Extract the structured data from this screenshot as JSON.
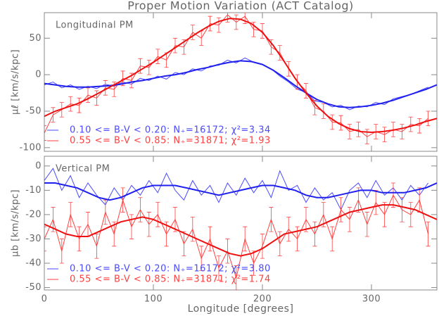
{
  "chart_data": [
    {
      "type": "line",
      "title": "Proper Motion Variation (ACT Catalog)",
      "annotation": "Longitudinal PM",
      "ylabel": "μℓ [km/s/kpc]",
      "xlim": [
        0,
        360
      ],
      "xticks": [
        0,
        100,
        200,
        300
      ],
      "show_xtick_labels": false,
      "ylim": [
        -105,
        85
      ],
      "yticks": [
        -100,
        -50,
        0,
        50
      ],
      "series": [
        {
          "name": "0.10 <= B-V < 0.20:  N₊=16172;  χ²=3.34",
          "color": "#4a4aff",
          "width": 1,
          "x": [
            0,
            8,
            16,
            24,
            32,
            40,
            48,
            56,
            64,
            72,
            80,
            88,
            96,
            104,
            112,
            120,
            128,
            136,
            144,
            152,
            160,
            168,
            176,
            184,
            192,
            200,
            208,
            216,
            224,
            232,
            240,
            248,
            256,
            264,
            272,
            280,
            288,
            296,
            304,
            312,
            320,
            328,
            336,
            344,
            352
          ],
          "values": [
            -14,
            -10,
            -18,
            -14,
            -20,
            -16,
            -19,
            -13,
            -16,
            -10,
            -13,
            -5,
            -8,
            -2,
            -6,
            3,
            0,
            8,
            5,
            12,
            13,
            20,
            16,
            23,
            17,
            14,
            8,
            -2,
            -10,
            -20,
            -24,
            -36,
            -38,
            -44,
            -42,
            -48,
            -43,
            -44,
            -38,
            -41,
            -33,
            -30,
            -27,
            -22,
            -17
          ]
        },
        {
          "name": "0.55 <= B-V < 0.85:  N₊=31871;  χ²=1.93",
          "color": "#ff4040",
          "width": 1,
          "error": 10,
          "x": [
            0,
            8,
            16,
            24,
            32,
            40,
            48,
            56,
            64,
            72,
            80,
            88,
            96,
            104,
            112,
            120,
            128,
            136,
            144,
            152,
            160,
            168,
            176,
            184,
            192,
            200,
            208,
            216,
            224,
            232,
            240,
            248,
            256,
            264,
            272,
            280,
            288,
            296,
            304,
            312,
            320,
            328,
            336,
            344,
            352
          ],
          "values": [
            -80,
            -55,
            -48,
            -40,
            -42,
            -28,
            -32,
            -18,
            -20,
            -5,
            -8,
            12,
            10,
            25,
            20,
            40,
            38,
            58,
            50,
            70,
            68,
            82,
            72,
            80,
            62,
            60,
            38,
            30,
            8,
            -10,
            -22,
            -45,
            -50,
            -65,
            -66,
            -78,
            -75,
            -85,
            -78,
            -82,
            -75,
            -78,
            -68,
            -70,
            -60
          ]
        },
        {
          "color": "#2020ee",
          "width": 2,
          "x": [
            0,
            10,
            20,
            30,
            40,
            50,
            60,
            70,
            80,
            90,
            100,
            110,
            120,
            130,
            140,
            150,
            160,
            170,
            180,
            190,
            200,
            210,
            220,
            230,
            240,
            250,
            260,
            270,
            280,
            290,
            300,
            310,
            320,
            330,
            340,
            350,
            360
          ],
          "values": [
            -12,
            -14,
            -16,
            -17,
            -17,
            -16,
            -15,
            -13,
            -10,
            -8,
            -5,
            -2,
            0,
            3,
            7,
            10,
            14,
            17,
            19,
            18,
            14,
            6,
            -4,
            -15,
            -25,
            -34,
            -40,
            -44,
            -45,
            -44,
            -42,
            -39,
            -35,
            -30,
            -25,
            -20,
            -14
          ]
        },
        {
          "color": "#ee1010",
          "width": 2,
          "x": [
            0,
            10,
            20,
            30,
            40,
            50,
            60,
            70,
            80,
            90,
            100,
            110,
            120,
            130,
            140,
            150,
            160,
            170,
            180,
            190,
            200,
            210,
            220,
            230,
            240,
            250,
            260,
            270,
            280,
            290,
            300,
            310,
            320,
            330,
            340,
            350,
            360
          ],
          "values": [
            -57,
            -50,
            -45,
            -40,
            -33,
            -25,
            -17,
            -9,
            -1,
            8,
            17,
            27,
            37,
            47,
            57,
            66,
            73,
            77,
            76,
            70,
            58,
            40,
            18,
            -5,
            -25,
            -43,
            -57,
            -67,
            -74,
            -78,
            -79,
            -78,
            -76,
            -73,
            -69,
            -64,
            -60
          ]
        }
      ]
    },
    {
      "type": "line",
      "annotation": "Vertical PM",
      "ylabel": "μb [km/s/kpc]",
      "xlabel": "Longitude [degrees]",
      "xlim": [
        0,
        360
      ],
      "xticks": [
        0,
        100,
        200,
        300
      ],
      "show_xtick_labels": true,
      "ylim": [
        -51,
        4
      ],
      "yticks": [
        0,
        -10,
        -20,
        -30,
        -40,
        -50
      ],
      "series": [
        {
          "name": "0.10 <= B-V < 0.20:  N₊=16172;  χ²=3.80",
          "color": "#4a4aff",
          "width": 1,
          "x": [
            0,
            8,
            16,
            24,
            32,
            40,
            48,
            56,
            64,
            72,
            80,
            88,
            96,
            104,
            112,
            120,
            128,
            136,
            144,
            152,
            160,
            168,
            176,
            184,
            192,
            200,
            208,
            216,
            224,
            232,
            240,
            248,
            256,
            264,
            272,
            280,
            288,
            296,
            304,
            312,
            320,
            328,
            336,
            344,
            352
          ],
          "values": [
            -6,
            -1,
            -10,
            -4,
            -13,
            -7,
            -12,
            -16,
            -9,
            -14,
            -8,
            -12,
            -6,
            -11,
            -3,
            -10,
            -14,
            -6,
            -12,
            -8,
            -15,
            -7,
            -12,
            -5,
            -11,
            -6,
            -13,
            -2,
            -10,
            -8,
            -15,
            -9,
            -14,
            -11,
            -18,
            -10,
            -7,
            -13,
            -6,
            -12,
            -9,
            -14,
            -8,
            -12,
            -7
          ]
        },
        {
          "name": "0.55 <= B-V < 0.85:  N₊=31871;  χ²=1.74",
          "color": "#ff4040",
          "width": 1,
          "error": 5,
          "x": [
            0,
            8,
            16,
            24,
            32,
            40,
            48,
            56,
            64,
            72,
            80,
            88,
            96,
            104,
            112,
            120,
            128,
            136,
            144,
            152,
            160,
            168,
            176,
            184,
            192,
            200,
            208,
            216,
            224,
            232,
            240,
            248,
            256,
            264,
            272,
            280,
            288,
            296,
            304,
            312,
            320,
            328,
            336,
            344,
            352
          ],
          "values": [
            -30,
            -22,
            -35,
            -20,
            -30,
            -24,
            -33,
            -19,
            -28,
            -14,
            -25,
            -18,
            -24,
            -20,
            -28,
            -22,
            -32,
            -26,
            -38,
            -30,
            -42,
            -35,
            -46,
            -30,
            -40,
            -33,
            -22,
            -32,
            -26,
            -30,
            -22,
            -28,
            -20,
            -30,
            -18,
            -22,
            -14,
            -24,
            -15,
            -20,
            -12,
            -18,
            -20,
            -14,
            -28
          ]
        },
        {
          "color": "#2020ee",
          "width": 2,
          "x": [
            0,
            10,
            20,
            30,
            40,
            50,
            60,
            70,
            80,
            90,
            100,
            110,
            120,
            130,
            140,
            150,
            160,
            170,
            180,
            190,
            200,
            210,
            220,
            230,
            240,
            250,
            260,
            270,
            280,
            290,
            300,
            310,
            320,
            330,
            340,
            350,
            360
          ],
          "values": [
            -7,
            -7,
            -8,
            -9,
            -11,
            -13,
            -14,
            -13,
            -11,
            -9,
            -8,
            -8,
            -8,
            -9,
            -10,
            -11,
            -12,
            -11,
            -10,
            -9,
            -8,
            -8,
            -9,
            -10,
            -12,
            -13,
            -13,
            -12,
            -11,
            -10,
            -10,
            -11,
            -11,
            -11,
            -10,
            -9,
            -7
          ]
        },
        {
          "color": "#ee1010",
          "width": 2,
          "x": [
            0,
            10,
            20,
            30,
            40,
            50,
            60,
            70,
            80,
            90,
            100,
            110,
            120,
            130,
            140,
            150,
            160,
            170,
            180,
            190,
            200,
            210,
            220,
            230,
            240,
            250,
            260,
            270,
            280,
            290,
            300,
            310,
            320,
            330,
            340,
            350,
            360
          ],
          "values": [
            -24,
            -26,
            -28,
            -29,
            -29,
            -27,
            -25,
            -23,
            -22,
            -21,
            -22,
            -24,
            -26,
            -28,
            -30,
            -32,
            -34,
            -36,
            -37,
            -36,
            -34,
            -31,
            -28,
            -27,
            -26,
            -25,
            -23,
            -21,
            -19,
            -18,
            -17,
            -16,
            -16,
            -17,
            -18,
            -20,
            -22
          ]
        }
      ]
    }
  ]
}
